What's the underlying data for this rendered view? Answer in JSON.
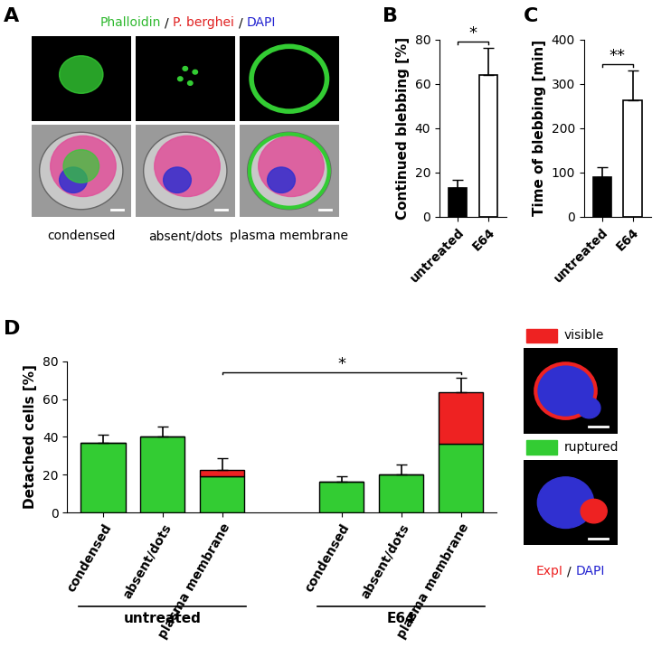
{
  "panel_labels": [
    "A",
    "B",
    "C",
    "D"
  ],
  "image_panel": {
    "title_parts": [
      {
        "text": "Phalloidin",
        "color": "#2db82d"
      },
      {
        "text": "/",
        "color": "#000000"
      },
      {
        "text": "P. berghei",
        "color": "#e02020"
      },
      {
        "text": "/",
        "color": "#000000"
      },
      {
        "text": "DAPI",
        "color": "#2020d0"
      }
    ],
    "captions": [
      "condensed",
      "absent/dots",
      "plasma membrane"
    ]
  },
  "chart_data": [
    {
      "type": "bar",
      "y_label": "Continued blebbing [%]",
      "categories": [
        "untreated",
        "E64"
      ],
      "values": [
        13,
        64
      ],
      "errors": [
        3.5,
        12
      ],
      "colors": [
        "#000000",
        "#ffffff"
      ],
      "ylim": [
        0,
        80
      ],
      "yticks": [
        0,
        20,
        40,
        60,
        80
      ],
      "annotations": [
        {
          "text": "*",
          "categories": [
            0,
            1
          ]
        }
      ]
    },
    {
      "type": "bar",
      "y_label": "Time of blebbing [min]",
      "categories": [
        "untreated",
        "E64"
      ],
      "values": [
        90,
        262
      ],
      "errors": [
        22,
        68
      ],
      "colors": [
        "#000000",
        "#ffffff"
      ],
      "ylim": [
        0,
        400
      ],
      "yticks": [
        0,
        100,
        200,
        300,
        400
      ],
      "annotations": [
        {
          "text": "**",
          "categories": [
            0,
            1
          ]
        }
      ]
    },
    {
      "type": "bar",
      "stacked": true,
      "y_label": "Detached cells [%]",
      "categories": [
        "condensed",
        "absent/dots",
        "plasma membrane",
        "condensed",
        "absent/dots",
        "plasma membrane"
      ],
      "groups": [
        {
          "name": "untreated",
          "categories": [
            0,
            1,
            2
          ]
        },
        {
          "name": "E64",
          "categories": [
            3,
            4,
            5
          ]
        }
      ],
      "series": [
        {
          "name": "ruptured",
          "color": "#33cc33",
          "values": [
            37,
            40,
            19,
            16.5,
            20,
            36.5
          ]
        },
        {
          "name": "visible",
          "color": "#ee2222",
          "values": [
            0,
            0,
            3.5,
            0,
            0,
            27
          ]
        }
      ],
      "errors": [
        4,
        5.5,
        6,
        2.5,
        5.5,
        8
      ],
      "ylim": [
        0,
        80
      ],
      "yticks": [
        0,
        20,
        40,
        60,
        80
      ],
      "annotations": [
        {
          "text": "*",
          "categories": [
            2,
            5
          ]
        }
      ],
      "image_caption_parts": [
        {
          "text": "ExpI",
          "color": "#ee2222"
        },
        {
          "text": "/",
          "color": "#000000"
        },
        {
          "text": "DAPI",
          "color": "#2020d0"
        }
      ]
    }
  ]
}
